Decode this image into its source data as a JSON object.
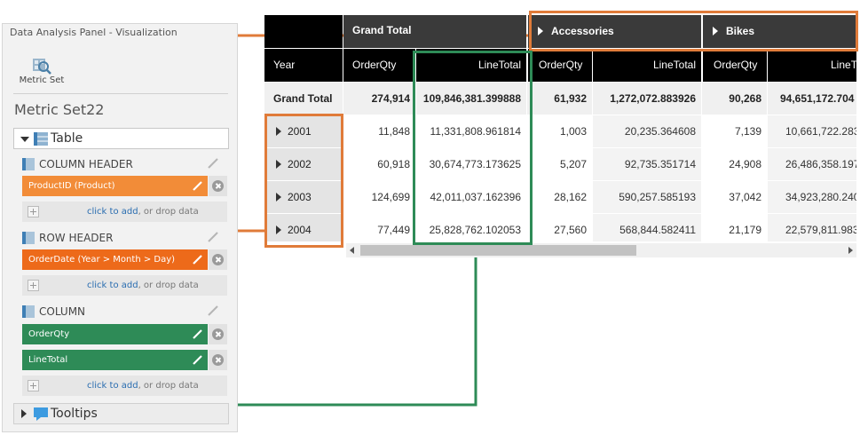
{
  "panel": {
    "title": "Data Analysis Panel - Visualization",
    "metric_set_button": "Metric Set",
    "metric_set_name": "Metric Set22",
    "visualization": "Table",
    "sections": {
      "column_header": {
        "label": "COLUMN HEADER",
        "field": "ProductID (Product)",
        "color": "#f28c38"
      },
      "row_header": {
        "label": "ROW HEADER",
        "field": "OrderDate (Year > Month > Day)",
        "color": "#ed6a1a"
      },
      "column": {
        "label": "COLUMN",
        "fields": [
          "OrderQty",
          "LineTotal"
        ],
        "color": "#2e8b57"
      }
    },
    "add_link": "click to add",
    "add_suffix": ", or drop data",
    "tooltips": "Tooltips"
  },
  "table": {
    "top_headers": {
      "grand_total": "Grand Total",
      "accessories": "Accessories",
      "bikes": "Bikes"
    },
    "columns": {
      "year": "Year",
      "orderqty": "OrderQty",
      "linetotal": "LineTotal"
    },
    "grand_total_row": {
      "label": "Grand Total",
      "values": [
        "274,914",
        "109,846,381.399888",
        "61,932",
        "1,272,072.883926",
        "90,268",
        "94,651,172.704"
      ]
    },
    "rows": [
      {
        "year": "2001",
        "values": [
          "11,848",
          "11,331,808.961814",
          "1,003",
          "20,235.364608",
          "7,139",
          "10,661,722.283"
        ]
      },
      {
        "year": "2002",
        "values": [
          "60,918",
          "30,674,773.173625",
          "5,207",
          "92,735.351714",
          "24,908",
          "26,486,358.197"
        ]
      },
      {
        "year": "2003",
        "values": [
          "124,699",
          "42,011,037.162396",
          "28,162",
          "590,257.585193",
          "37,042",
          "34,923,280.240"
        ]
      },
      {
        "year": "2004",
        "values": [
          "77,449",
          "25,828,762.102053",
          "27,560",
          "568,844.582411",
          "21,179",
          "22,579,811.983"
        ]
      }
    ]
  },
  "colors": {
    "callout_orange": "#e07b39",
    "callout_green": "#2e8b57",
    "header_dark": "#3a3a3a",
    "header_black": "#000000"
  }
}
